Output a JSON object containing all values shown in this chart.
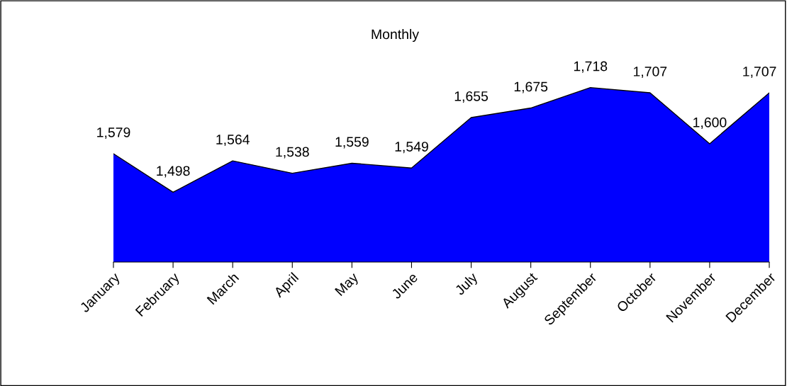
{
  "chart_data": {
    "type": "area",
    "title": "Monthly",
    "categories": [
      "January",
      "February",
      "March",
      "April",
      "May",
      "June",
      "July",
      "August",
      "September",
      "October",
      "November",
      "December"
    ],
    "series": [
      {
        "color": "#0000ff",
        "values": [
          1579,
          1498,
          1564,
          1538,
          1559,
          1549,
          1655,
          1675,
          1718,
          1707,
          1600,
          1707
        ],
        "value_labels": [
          "1,579",
          "1,498",
          "1,564",
          "1,538",
          "1,559",
          "1,549",
          "1,655",
          "1,675",
          "1,718",
          "1,707",
          "1,600",
          "1,707"
        ]
      }
    ],
    "tick_labels": "x",
    "grid": false,
    "legend": false
  }
}
